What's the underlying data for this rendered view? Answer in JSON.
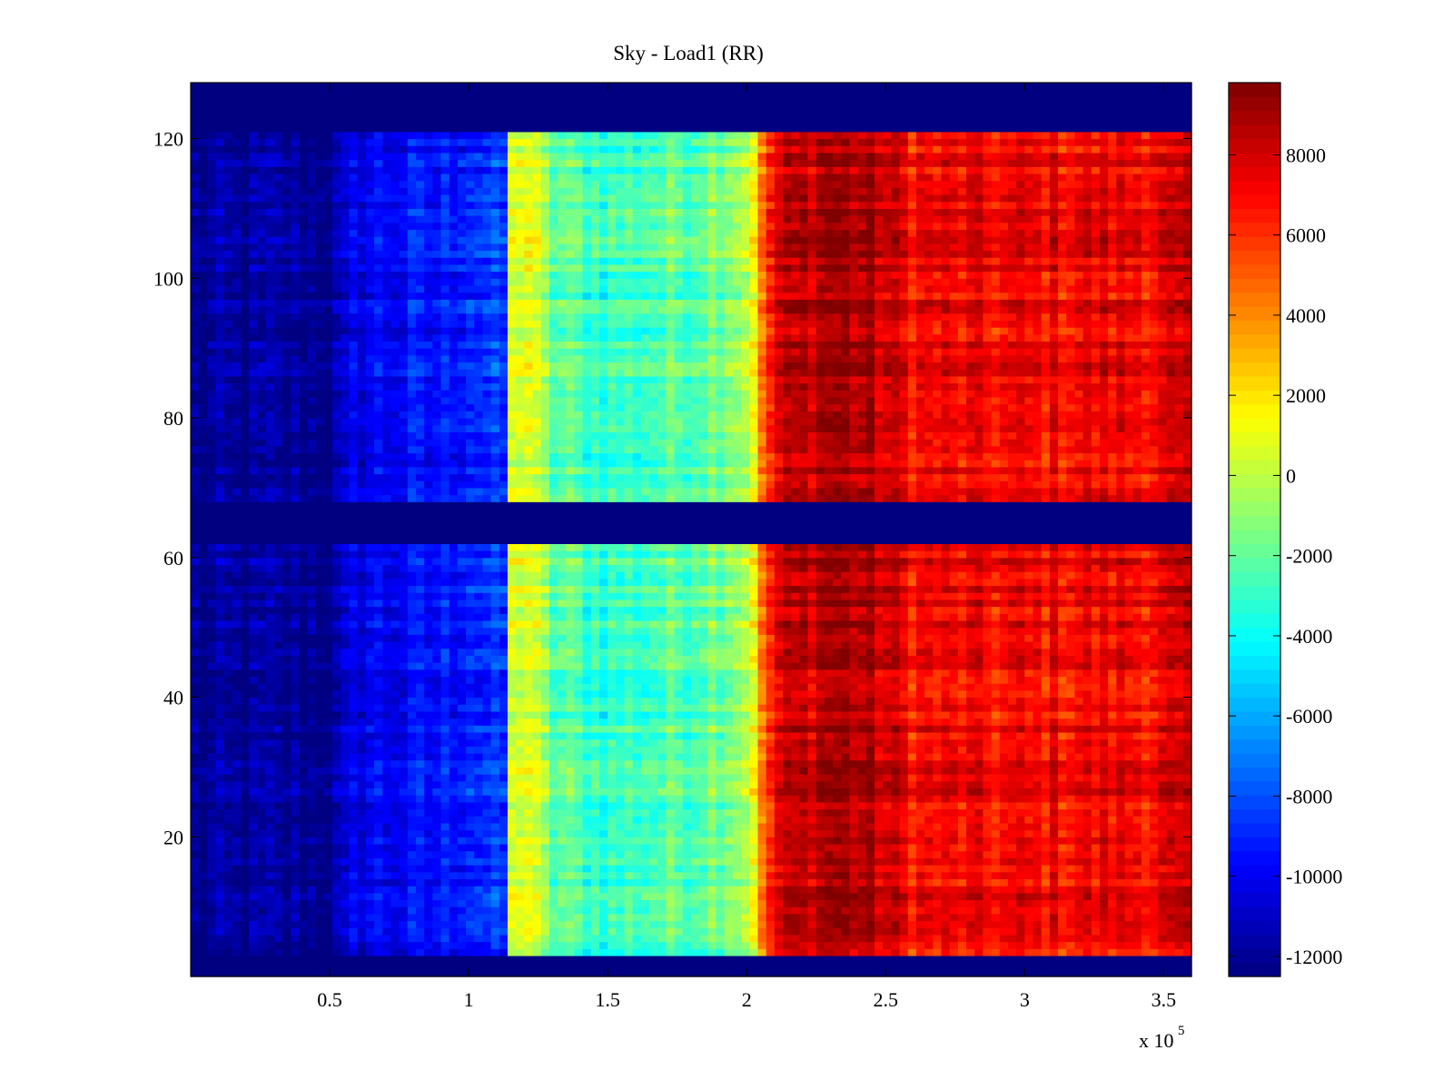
{
  "chart_data": {
    "type": "heatmap",
    "title": "Sky - Load1 (RR)",
    "xlabel": "",
    "ylabel": "",
    "x_multiplier_label": "x 10",
    "x_multiplier_exponent": "5",
    "xlim": [
      0,
      3.6
    ],
    "ylim": [
      0,
      128
    ],
    "x_ticks": [
      0.5,
      1,
      1.5,
      2,
      2.5,
      3,
      3.5
    ],
    "x_tick_labels": [
      "0.5",
      "1",
      "1.5",
      "2",
      "2.5",
      "3",
      "3.5"
    ],
    "y_ticks": [
      20,
      40,
      60,
      80,
      100,
      120
    ],
    "y_tick_labels": [
      "20",
      "40",
      "60",
      "80",
      "100",
      "120"
    ],
    "colormap": "jet",
    "color_range": [
      -12500,
      9800
    ],
    "colorbar_ticks": [
      8000,
      6000,
      4000,
      2000,
      0,
      -2000,
      -4000,
      -6000,
      -8000,
      -10000,
      -12000
    ],
    "colorbar_tick_labels": [
      "8000",
      "6000",
      "4000",
      "2000",
      "0",
      "-2000",
      "-4000",
      "-6000",
      "-8000",
      "-10000",
      "-12000"
    ],
    "masked_rows_approx": [
      [
        0,
        3
      ],
      [
        62,
        68
      ],
      [
        121,
        128
      ]
    ],
    "x_profile_approx": {
      "x": [
        0,
        0.5,
        0.55,
        0.6,
        0.9,
        1.0,
        1.1,
        1.14,
        1.15,
        1.2,
        1.3,
        1.5,
        1.8,
        1.9,
        2.0,
        2.05,
        2.1,
        2.3,
        2.45,
        2.6,
        3.0,
        3.4,
        3.6
      ],
      "value": [
        -12200,
        -12000,
        -11500,
        -10000,
        -9500,
        -8500,
        -9000,
        -8500,
        0,
        1500,
        -2000,
        -3000,
        -2000,
        -1200,
        0,
        3500,
        7500,
        9200,
        8500,
        7000,
        7000,
        7300,
        7500
      ]
    }
  }
}
